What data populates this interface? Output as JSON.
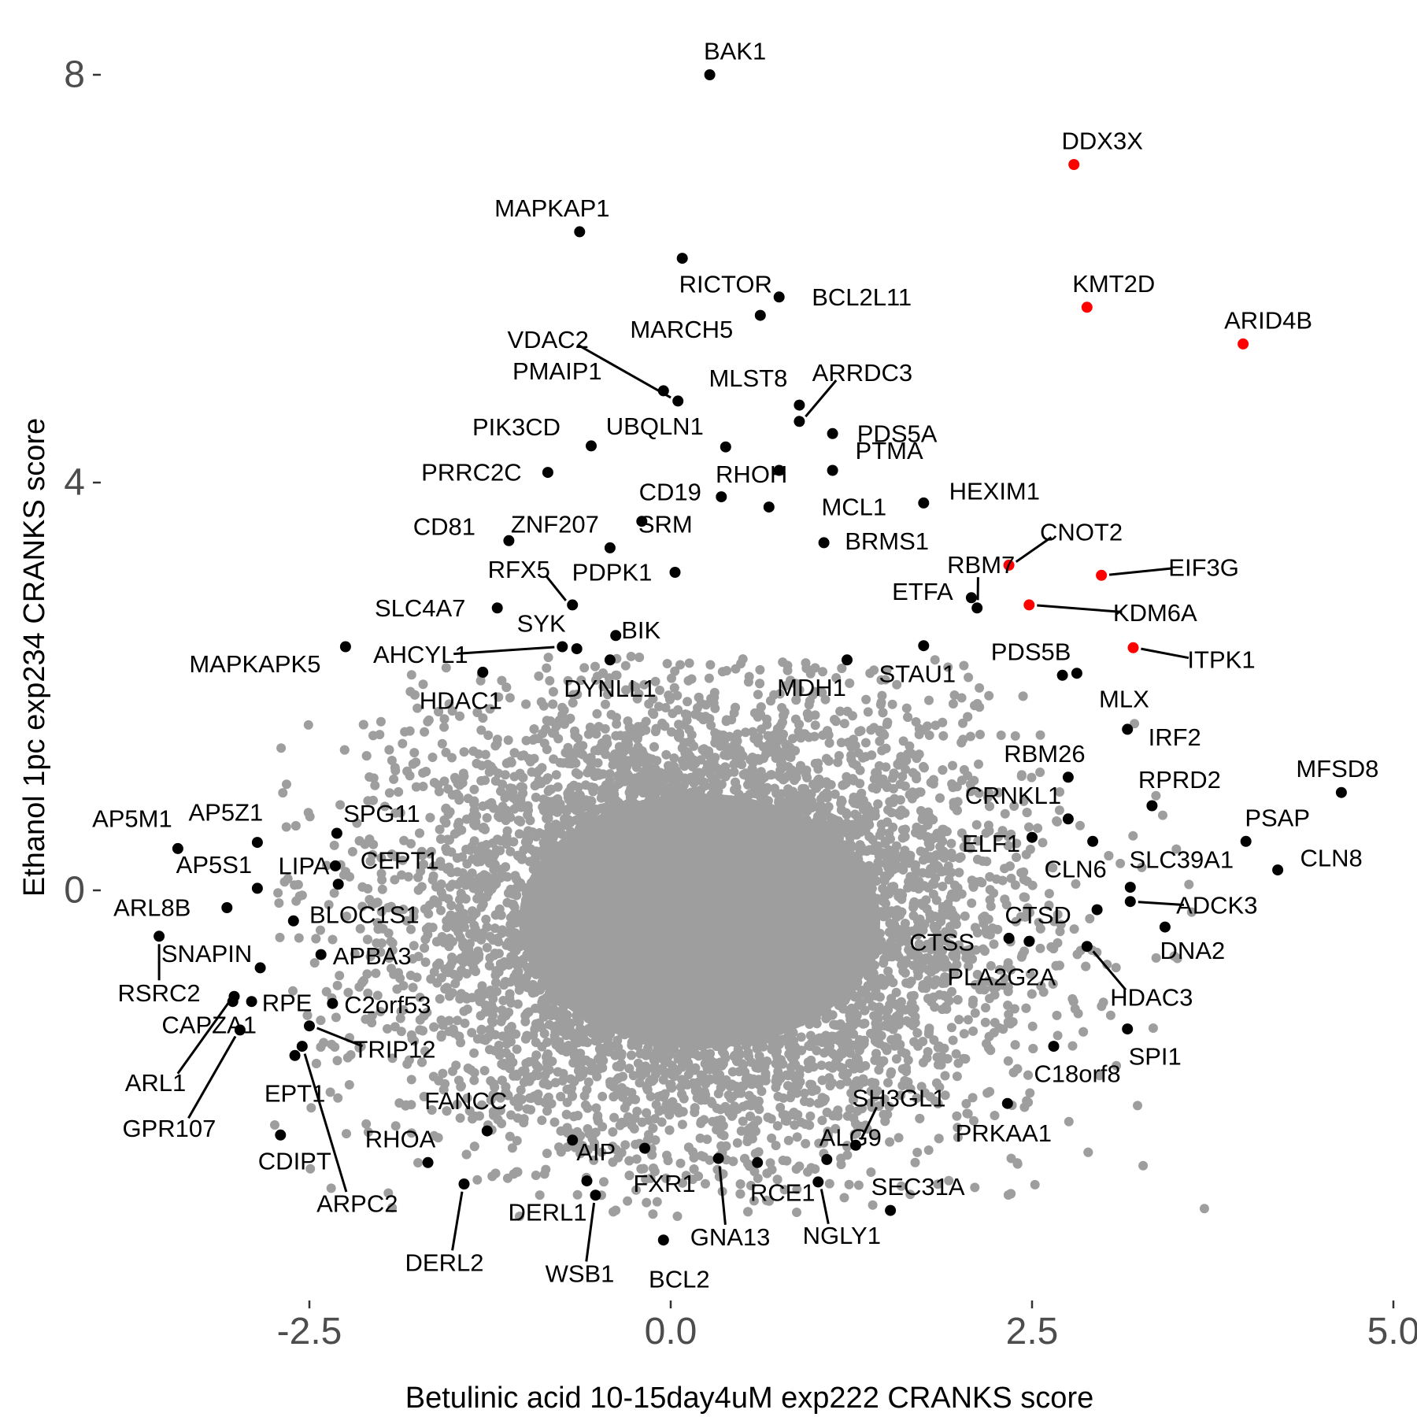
{
  "chart_data": {
    "type": "scatter",
    "xlabel": "Betulinic acid 10-15day4uM exp222 CRANKS score",
    "ylabel": "Ethanol 1pc exp234 CRANKS score",
    "xlim": [
      -3.7,
      5.0
    ],
    "ylim": [
      -4.1,
      8.8
    ],
    "x_ticks": [
      {
        "value": -2.5,
        "label": "-2.5"
      },
      {
        "value": 0,
        "label": "0.0"
      },
      {
        "value": 2.5,
        "label": "2.5"
      },
      {
        "value": 5,
        "label": "5.0"
      }
    ],
    "y_ticks": [
      {
        "value": 0,
        "label": "0"
      },
      {
        "value": 4,
        "label": "4"
      },
      {
        "value": 8,
        "label": "8"
      }
    ],
    "grid": false,
    "legend": "none",
    "colors": {
      "background": "#9e9e9e",
      "labeled": "#000000",
      "highlight": "#ff0000"
    },
    "background_cloud": {
      "n_points": 9000,
      "center": [
        0.2,
        -0.3
      ],
      "sd": [
        0.95,
        1.05
      ],
      "description": "unlabeled genes, gray"
    },
    "points": [
      {
        "label": "BAK1",
        "x": 0.27,
        "y": 8.0,
        "color": "black"
      },
      {
        "label": "DDX3X",
        "x": 2.79,
        "y": 7.12,
        "color": "red"
      },
      {
        "label": "MAPKAP1",
        "x": -0.63,
        "y": 6.46,
        "color": "black"
      },
      {
        "label": "RICTOR",
        "x": 0.08,
        "y": 6.2,
        "color": "black"
      },
      {
        "label": "BCL2L11",
        "x": 0.75,
        "y": 5.82,
        "color": "black"
      },
      {
        "label": "KMT2D",
        "x": 2.88,
        "y": 5.72,
        "color": "red"
      },
      {
        "label": "MARCH5",
        "x": 0.62,
        "y": 5.64,
        "color": "black"
      },
      {
        "label": "ARID4B",
        "x": 3.96,
        "y": 5.36,
        "color": "red"
      },
      {
        "label": "VDAC2",
        "x": 0.05,
        "y": 4.8,
        "color": "black"
      },
      {
        "label": "PMAIP1",
        "x": -0.05,
        "y": 4.9,
        "color": "black"
      },
      {
        "label": "MLST8",
        "x": 0.89,
        "y": 4.76,
        "color": "black"
      },
      {
        "label": "ARRDC3",
        "x": 0.89,
        "y": 4.6,
        "color": "black"
      },
      {
        "label": "PDS5A",
        "x": 1.12,
        "y": 4.48,
        "color": "black"
      },
      {
        "label": "PIK3CD",
        "x": -0.55,
        "y": 4.36,
        "color": "black"
      },
      {
        "label": "UBQLN1",
        "x": 0.38,
        "y": 4.35,
        "color": "black"
      },
      {
        "label": "PTMA",
        "x": 1.12,
        "y": 4.12,
        "color": "black"
      },
      {
        "label": "PRRC2C",
        "x": -0.85,
        "y": 4.1,
        "color": "black"
      },
      {
        "label": "RHOH",
        "x": 0.75,
        "y": 4.12,
        "color": "black"
      },
      {
        "label": "CD19",
        "x": 0.35,
        "y": 3.86,
        "color": "black"
      },
      {
        "label": "HEXIM1",
        "x": 1.75,
        "y": 3.8,
        "color": "black"
      },
      {
        "label": "MCL1",
        "x": 0.68,
        "y": 3.76,
        "color": "black"
      },
      {
        "label": "SRM",
        "x": -0.2,
        "y": 3.62,
        "color": "black"
      },
      {
        "label": "CD81",
        "x": -1.12,
        "y": 3.43,
        "color": "black"
      },
      {
        "label": "ZNF207",
        "x": -0.42,
        "y": 3.36,
        "color": "black"
      },
      {
        "label": "BRMS1",
        "x": 1.06,
        "y": 3.41,
        "color": "black"
      },
      {
        "label": "CNOT2",
        "x": 2.34,
        "y": 3.19,
        "color": "red"
      },
      {
        "label": "PDPK1",
        "x": 0.03,
        "y": 3.12,
        "color": "black"
      },
      {
        "label": "EIF3G",
        "x": 2.98,
        "y": 3.09,
        "color": "red"
      },
      {
        "label": "RFX5",
        "x": -0.68,
        "y": 2.8,
        "color": "black"
      },
      {
        "label": "ETFA",
        "x": 2.08,
        "y": 2.87,
        "color": "black"
      },
      {
        "label": "RBM7",
        "x": 2.12,
        "y": 2.77,
        "color": "black"
      },
      {
        "label": "KDM6A",
        "x": 2.48,
        "y": 2.8,
        "color": "red"
      },
      {
        "label": "SLC4A7",
        "x": -1.2,
        "y": 2.77,
        "color": "black"
      },
      {
        "label": "ITPK1",
        "x": 3.2,
        "y": 2.38,
        "color": "red"
      },
      {
        "label": "MAPKAPK5",
        "x": -2.25,
        "y": 2.39,
        "color": "black"
      },
      {
        "label": "AHCYL1",
        "x": -0.75,
        "y": 2.39,
        "color": "black"
      },
      {
        "label": "SYK",
        "x": -0.65,
        "y": 2.37,
        "color": "black"
      },
      {
        "label": "BIK",
        "x": -0.38,
        "y": 2.5,
        "color": "black"
      },
      {
        "label": "DYNLL1",
        "x": -0.42,
        "y": 2.26,
        "color": "black"
      },
      {
        "label": "HDAC1",
        "x": -1.3,
        "y": 2.14,
        "color": "black"
      },
      {
        "label": "MDH1",
        "x": 1.22,
        "y": 2.26,
        "color": "black"
      },
      {
        "label": "STAU1",
        "x": 1.75,
        "y": 2.4,
        "color": "black"
      },
      {
        "label": "PDS5B",
        "x": 2.71,
        "y": 2.11,
        "color": "black"
      },
      {
        "label": "MLX",
        "x": 2.81,
        "y": 2.13,
        "color": "black"
      },
      {
        "label": "IRF2",
        "x": 3.16,
        "y": 1.58,
        "color": "black"
      },
      {
        "label": "RBM26",
        "x": 2.75,
        "y": 1.11,
        "color": "black"
      },
      {
        "label": "MFSD8",
        "x": 4.64,
        "y": 0.96,
        "color": "black"
      },
      {
        "label": "RPRD2",
        "x": 3.33,
        "y": 0.83,
        "color": "black"
      },
      {
        "label": "CRNKL1",
        "x": 2.75,
        "y": 0.7,
        "color": "black"
      },
      {
        "label": "ELF1",
        "x": 2.5,
        "y": 0.52,
        "color": "black"
      },
      {
        "label": "PSAP",
        "x": 3.98,
        "y": 0.48,
        "color": "black"
      },
      {
        "label": "CLN6",
        "x": 2.92,
        "y": 0.48,
        "color": "black"
      },
      {
        "label": "CLN8",
        "x": 4.2,
        "y": 0.2,
        "color": "black"
      },
      {
        "label": "SLC39A1",
        "x": 3.18,
        "y": 0.03,
        "color": "black"
      },
      {
        "label": "ADCK3",
        "x": 3.18,
        "y": -0.11,
        "color": "black"
      },
      {
        "label": "CTSD",
        "x": 2.95,
        "y": -0.19,
        "color": "black"
      },
      {
        "label": "DNA2",
        "x": 3.42,
        "y": -0.36,
        "color": "black"
      },
      {
        "label": "CTSS",
        "x": 2.34,
        "y": -0.47,
        "color": "black"
      },
      {
        "label": "PLA2G2A",
        "x": 2.48,
        "y": -0.5,
        "color": "black"
      },
      {
        "label": "HDAC3",
        "x": 2.88,
        "y": -0.55,
        "color": "black"
      },
      {
        "label": "SPI1",
        "x": 3.16,
        "y": -1.36,
        "color": "black"
      },
      {
        "label": "C18orf8",
        "x": 2.65,
        "y": -1.53,
        "color": "black"
      },
      {
        "label": "PRKAA1",
        "x": 2.33,
        "y": -2.09,
        "color": "black"
      },
      {
        "label": "SH3GL1",
        "x": 1.28,
        "y": -2.5,
        "color": "black"
      },
      {
        "label": "SEC31A",
        "x": 1.52,
        "y": -3.14,
        "color": "black"
      },
      {
        "label": "NGLY1",
        "x": 1.02,
        "y": -2.86,
        "color": "black"
      },
      {
        "label": "ALG9",
        "x": 1.08,
        "y": -2.64,
        "color": "black"
      },
      {
        "label": "RCE1",
        "x": 0.6,
        "y": -2.67,
        "color": "black"
      },
      {
        "label": "GNA13",
        "x": 0.33,
        "y": -2.63,
        "color": "black"
      },
      {
        "label": "FXR1",
        "x": -0.18,
        "y": -2.53,
        "color": "black"
      },
      {
        "label": "BCL2",
        "x": -0.05,
        "y": -3.43,
        "color": "black"
      },
      {
        "label": "AIP",
        "x": -0.68,
        "y": -2.45,
        "color": "black"
      },
      {
        "label": "FANCC",
        "x": -1.27,
        "y": -2.36,
        "color": "black"
      },
      {
        "label": "WSB1",
        "x": -0.52,
        "y": -2.99,
        "color": "black"
      },
      {
        "label": "DERL1",
        "x": -0.58,
        "y": -2.85,
        "color": "black"
      },
      {
        "label": "DERL2",
        "x": -1.43,
        "y": -2.88,
        "color": "black"
      },
      {
        "label": "RHOA",
        "x": -1.68,
        "y": -2.67,
        "color": "black"
      },
      {
        "label": "CDIPT",
        "x": -2.7,
        "y": -2.4,
        "color": "black"
      },
      {
        "label": "ARPC2",
        "x": -2.55,
        "y": -1.53,
        "color": "black"
      },
      {
        "label": "EPT1",
        "x": -2.6,
        "y": -1.62,
        "color": "black"
      },
      {
        "label": "TRIP12",
        "x": -2.5,
        "y": -1.33,
        "color": "black"
      },
      {
        "label": "C2orf53",
        "x": -2.34,
        "y": -1.11,
        "color": "black"
      },
      {
        "label": "RPE",
        "x": -2.9,
        "y": -1.09,
        "color": "black"
      },
      {
        "label": "CAPZA1",
        "x": -3.03,
        "y": -1.09,
        "color": "black"
      },
      {
        "label": "ARL1",
        "x": -3.02,
        "y": -1.04,
        "color": "black"
      },
      {
        "label": "GPR107",
        "x": -2.98,
        "y": -1.37,
        "color": "black"
      },
      {
        "label": "APBA3",
        "x": -2.42,
        "y": -0.63,
        "color": "black"
      },
      {
        "label": "BLOC1S1",
        "x": -2.61,
        "y": -0.3,
        "color": "black"
      },
      {
        "label": "SNAPIN",
        "x": -2.84,
        "y": -0.76,
        "color": "black"
      },
      {
        "label": "RSRC2",
        "x": -3.54,
        "y": -0.45,
        "color": "black"
      },
      {
        "label": "ARL8B",
        "x": -3.07,
        "y": -0.17,
        "color": "black"
      },
      {
        "label": "AP5M1",
        "x": -3.41,
        "y": 0.41,
        "color": "black"
      },
      {
        "label": "AP5Z1",
        "x": -2.86,
        "y": 0.47,
        "color": "black"
      },
      {
        "label": "SPG11",
        "x": -2.31,
        "y": 0.56,
        "color": "black"
      },
      {
        "label": "LIPA",
        "x": -2.32,
        "y": 0.24,
        "color": "black"
      },
      {
        "label": "CEPT1",
        "x": -2.3,
        "y": 0.06,
        "color": "black"
      },
      {
        "label": "AP5S1",
        "x": -2.86,
        "y": 0.02,
        "color": "black"
      }
    ],
    "label_positions_note": "labels placed near points; those with leader lines connect label to point"
  }
}
